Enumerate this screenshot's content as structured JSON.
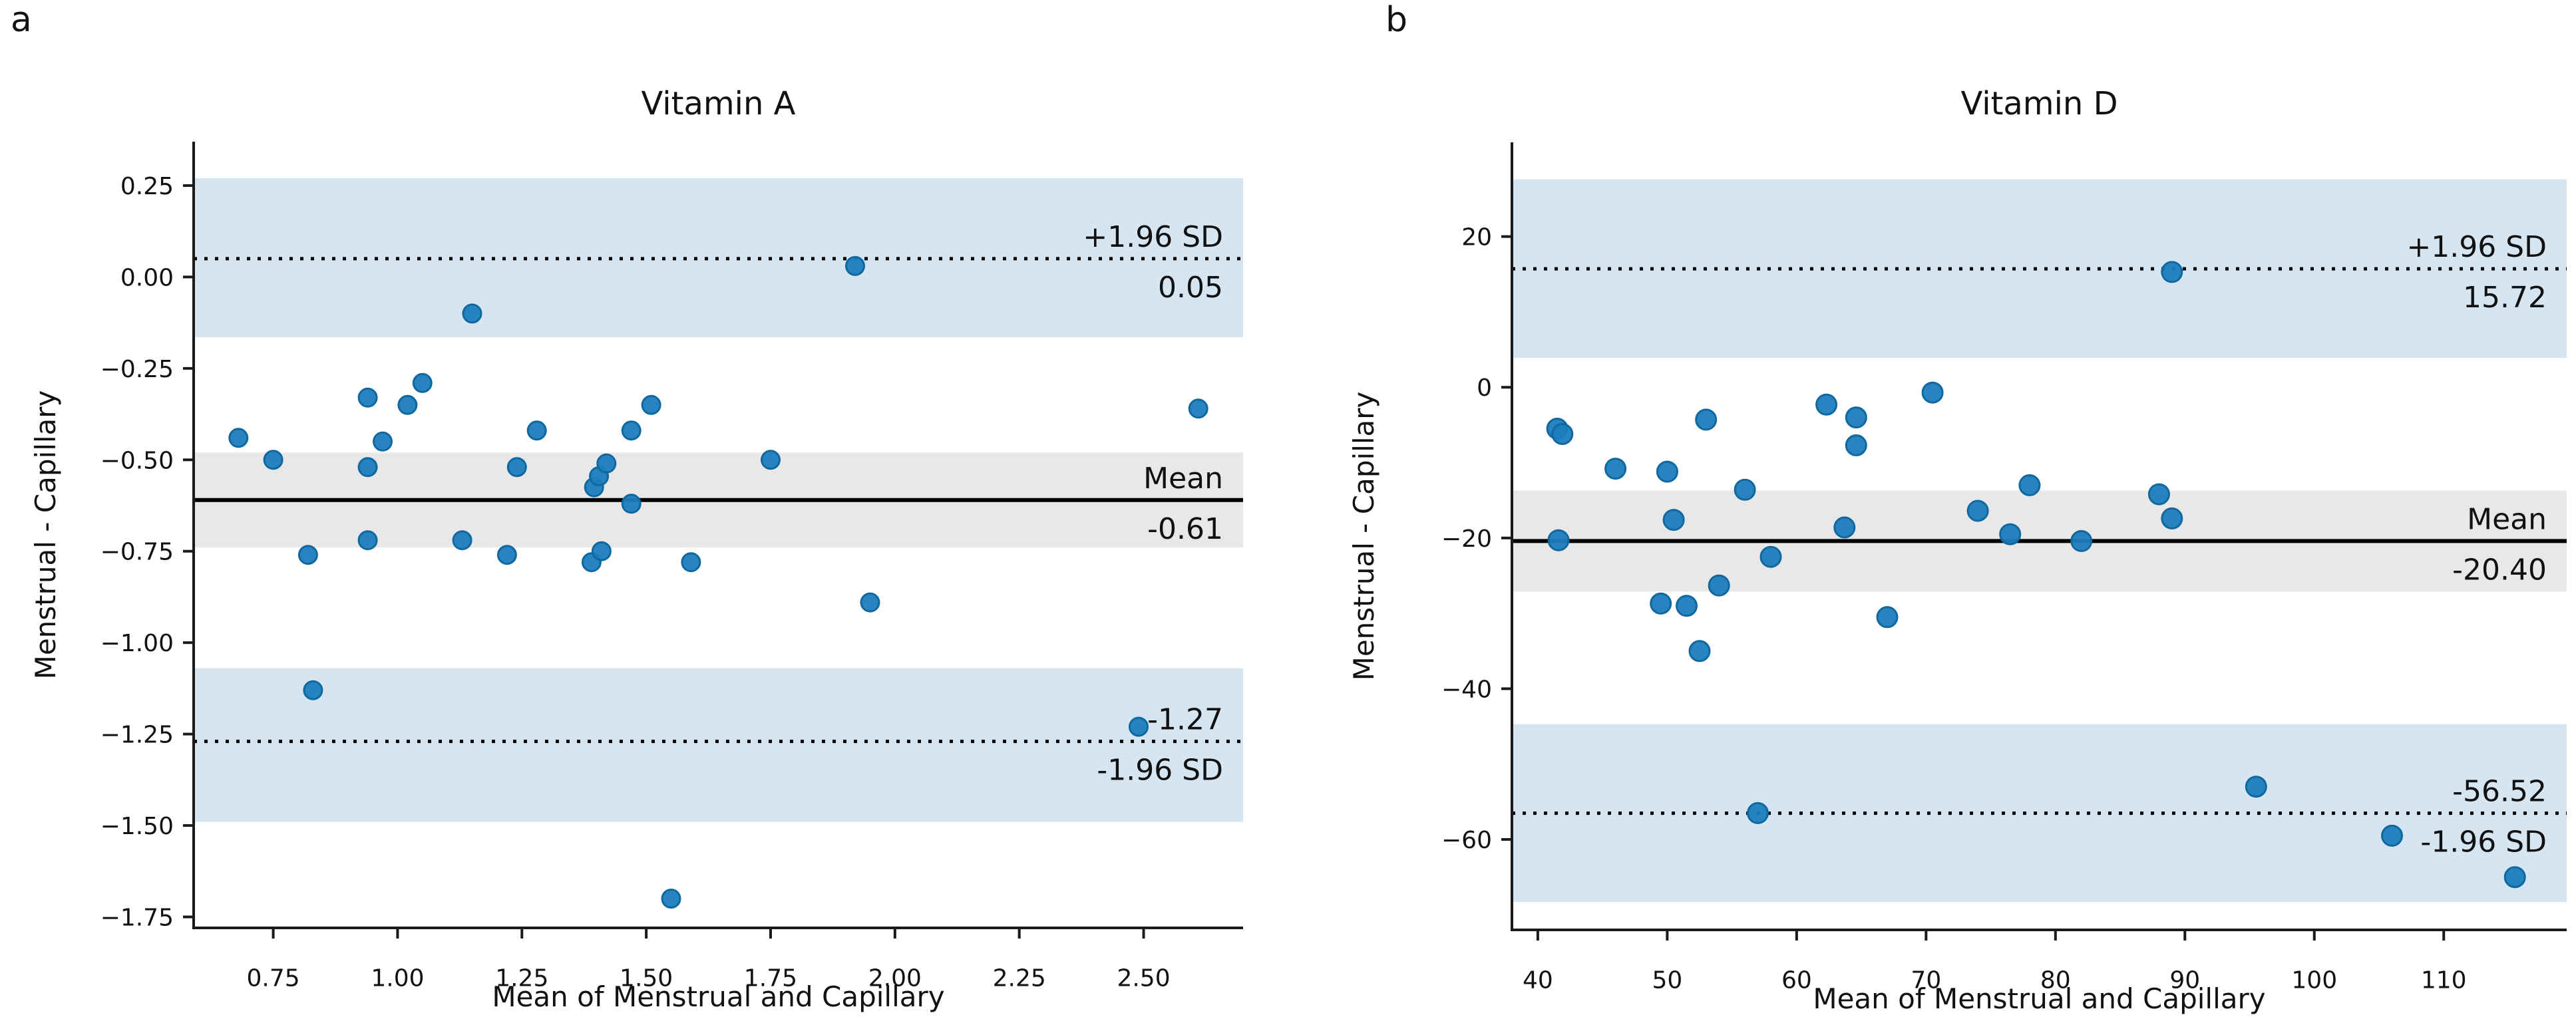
{
  "figure": {
    "background": "#ffffff"
  },
  "colors": {
    "marker_fill": "#1b7dbd",
    "marker_edge": "#10689f",
    "loa_band": "#d5e5f2",
    "mean_band": "#e8e8e8",
    "line": "#000000",
    "axis": "#1a1a1a",
    "text": "#111111"
  },
  "chart_data": [
    {
      "type": "scatter",
      "panel_label": "a",
      "title": "Vitamin A",
      "xlabel": "Mean of Menstrual and Capillary",
      "ylabel": "Menstrual - Capillary",
      "xlim": [
        0.59,
        2.7
      ],
      "ylim": [
        -1.78,
        0.37
      ],
      "xticks": [
        0.75,
        1.0,
        1.25,
        1.5,
        1.75,
        2.0,
        2.25,
        2.5
      ],
      "xtick_labels": [
        "0.75",
        "1.00",
        "1.25",
        "1.50",
        "1.75",
        "2.00",
        "2.25",
        "2.50"
      ],
      "yticks": [
        0.25,
        0.0,
        -0.25,
        -0.5,
        -0.75,
        -1.0,
        -1.25,
        -1.5,
        -1.75
      ],
      "ytick_labels": [
        "0.25",
        "0.00",
        "−0.25",
        "−0.50",
        "−0.75",
        "−1.00",
        "−1.25",
        "−1.50",
        "−1.75"
      ],
      "mean": -0.61,
      "loa_upper": 0.05,
      "loa_lower": -1.27,
      "bands": [
        {
          "lo": -0.165,
          "hi": 0.27,
          "kind": "loa"
        },
        {
          "lo": -0.74,
          "hi": -0.48,
          "kind": "mean"
        },
        {
          "lo": -1.49,
          "hi": -1.07,
          "kind": "loa"
        }
      ],
      "annotations": [
        {
          "y": 0.05,
          "above": "+1.96 SD",
          "below": "0.05"
        },
        {
          "y": -0.61,
          "above": "Mean",
          "below": "-0.61"
        },
        {
          "y": -1.27,
          "above": "-1.27",
          "below": "-1.96 SD"
        }
      ],
      "marker_radius": 13.5,
      "points": [
        [
          0.68,
          -0.44
        ],
        [
          0.75,
          -0.5
        ],
        [
          0.82,
          -0.76
        ],
        [
          0.83,
          -1.13
        ],
        [
          0.94,
          -0.33
        ],
        [
          0.97,
          -0.45
        ],
        [
          0.94,
          -0.52
        ],
        [
          0.94,
          -0.72
        ],
        [
          1.02,
          -0.35
        ],
        [
          1.05,
          -0.29
        ],
        [
          1.13,
          -0.72
        ],
        [
          1.15,
          -0.1
        ],
        [
          1.22,
          -0.76
        ],
        [
          1.24,
          -0.52
        ],
        [
          1.28,
          -0.42
        ],
        [
          1.395,
          -0.575
        ],
        [
          1.405,
          -0.545
        ],
        [
          1.42,
          -0.51
        ],
        [
          1.39,
          -0.78
        ],
        [
          1.41,
          -0.75
        ],
        [
          1.47,
          -0.62
        ],
        [
          1.47,
          -0.42
        ],
        [
          1.51,
          -0.35
        ],
        [
          1.55,
          -1.7
        ],
        [
          1.59,
          -0.78
        ],
        [
          1.75,
          -0.5
        ],
        [
          1.92,
          0.03
        ],
        [
          1.95,
          -0.89
        ],
        [
          2.49,
          -1.23
        ],
        [
          2.61,
          -0.36
        ]
      ]
    },
    {
      "type": "scatter",
      "panel_label": "b",
      "title": "Vitamin D",
      "xlabel": "Mean of Menstrual and Capillary",
      "ylabel": "Menstrual - Capillary",
      "xlim": [
        38,
        119.5
      ],
      "ylim": [
        -72,
        32.5
      ],
      "xticks": [
        40,
        50,
        60,
        70,
        80,
        90,
        100,
        110
      ],
      "xtick_labels": [
        "40",
        "50",
        "60",
        "70",
        "80",
        "90",
        "100",
        "110"
      ],
      "yticks": [
        20,
        0,
        -20,
        -40,
        -60
      ],
      "ytick_labels": [
        "20",
        "0",
        "−20",
        "−40",
        "−60"
      ],
      "mean": -20.4,
      "loa_upper": 15.72,
      "loa_lower": -56.52,
      "bands": [
        {
          "lo": 3.9,
          "hi": 27.6,
          "kind": "loa"
        },
        {
          "lo": -27.1,
          "hi": -13.7,
          "kind": "mean"
        },
        {
          "lo": -68.3,
          "hi": -44.7,
          "kind": "loa"
        }
      ],
      "annotations": [
        {
          "y": 15.72,
          "above": "+1.96 SD",
          "below": "15.72"
        },
        {
          "y": -20.4,
          "above": "Mean",
          "below": "-20.40"
        },
        {
          "y": -56.52,
          "above": "-56.52",
          "below": "-1.96 SD"
        }
      ],
      "marker_radius": 15,
      "points": [
        [
          41.5,
          -5.5
        ],
        [
          41.9,
          -6.2
        ],
        [
          41.6,
          -20.3
        ],
        [
          46,
          -10.8
        ],
        [
          50,
          -11.2
        ],
        [
          53,
          -4.3
        ],
        [
          50.5,
          -17.6
        ],
        [
          56,
          -13.6
        ],
        [
          58,
          -22.5
        ],
        [
          54,
          -26.3
        ],
        [
          49.5,
          -28.7
        ],
        [
          51.5,
          -29.0
        ],
        [
          52.5,
          -35.0
        ],
        [
          57,
          -56.5
        ],
        [
          62.3,
          -2.3
        ],
        [
          64.6,
          -4.0
        ],
        [
          64.6,
          -7.7
        ],
        [
          63.7,
          -18.6
        ],
        [
          67,
          -30.5
        ],
        [
          70.5,
          -0.7
        ],
        [
          74,
          -16.4
        ],
        [
          76.5,
          -19.5
        ],
        [
          78,
          -13.0
        ],
        [
          82,
          -20.4
        ],
        [
          88,
          -14.2
        ],
        [
          89,
          -17.4
        ],
        [
          89,
          15.3
        ],
        [
          95.5,
          -53.0
        ],
        [
          106,
          -59.5
        ],
        [
          115.5,
          -65.0
        ]
      ]
    }
  ]
}
